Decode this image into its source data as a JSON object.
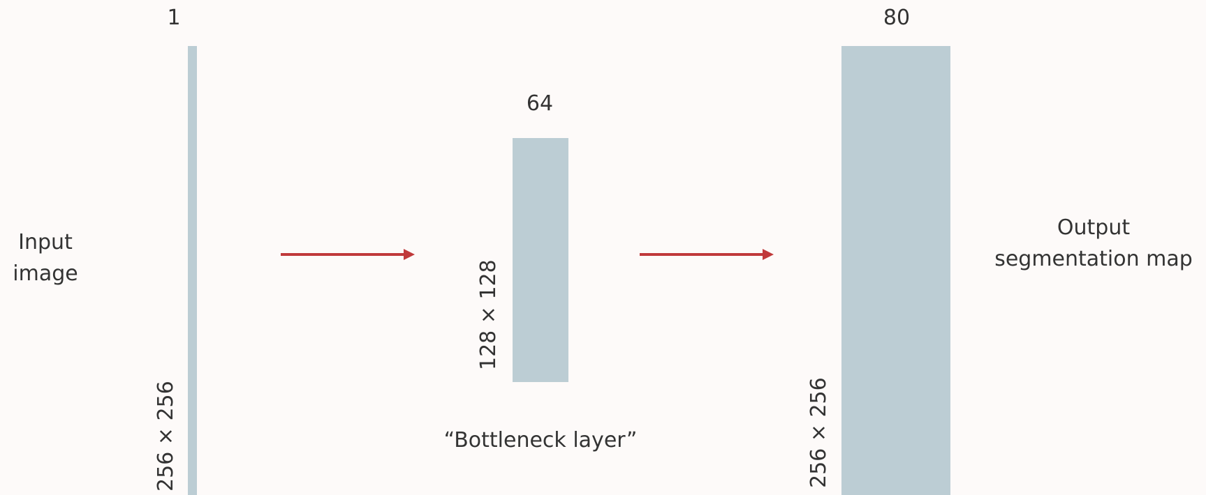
{
  "input_label": "Input\nimage",
  "output_label": "Output\nsegmentation map",
  "bottleneck_label": "“Bottleneck layer”",
  "layers": [
    {
      "channels": "1",
      "spatial": "256 × 256"
    },
    {
      "channels": "64",
      "spatial": "128 × 128"
    },
    {
      "channels": "80",
      "spatial": "256 × 256"
    }
  ],
  "colors": {
    "block": "#bccdd4",
    "arrow": "#c0393b",
    "text": "#333333",
    "background": "#fdfaf9"
  }
}
